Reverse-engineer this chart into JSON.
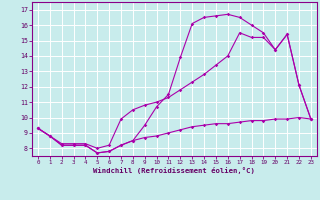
{
  "xlabel": "Windchill (Refroidissement éolien,°C)",
  "bg_color": "#c8ecec",
  "grid_color": "#ffffff",
  "line_color": "#aa00aa",
  "xlim": [
    -0.5,
    23.5
  ],
  "ylim": [
    7.5,
    17.5
  ],
  "xticks": [
    0,
    1,
    2,
    3,
    4,
    5,
    6,
    7,
    8,
    9,
    10,
    11,
    12,
    13,
    14,
    15,
    16,
    17,
    18,
    19,
    20,
    21,
    22,
    23
  ],
  "yticks": [
    8,
    9,
    10,
    11,
    12,
    13,
    14,
    15,
    16,
    17
  ],
  "line1_x": [
    0,
    1,
    2,
    3,
    4,
    5,
    6,
    7,
    8,
    9,
    10,
    11,
    12,
    13,
    14,
    15,
    16,
    17,
    18,
    19,
    20,
    21,
    22,
    23
  ],
  "line1_y": [
    9.3,
    8.8,
    8.2,
    8.2,
    8.2,
    7.7,
    7.8,
    8.2,
    8.5,
    9.5,
    10.7,
    11.5,
    13.9,
    16.1,
    16.5,
    16.6,
    16.7,
    16.5,
    16.0,
    15.5,
    14.4,
    15.4,
    12.1,
    9.9
  ],
  "line2_x": [
    0,
    1,
    2,
    3,
    4,
    5,
    6,
    7,
    8,
    9,
    10,
    11,
    12,
    13,
    14,
    15,
    16,
    17,
    18,
    19,
    20,
    21,
    22,
    23
  ],
  "line2_y": [
    9.3,
    8.8,
    8.3,
    8.3,
    8.3,
    8.0,
    8.2,
    9.9,
    10.5,
    10.8,
    11.0,
    11.3,
    11.8,
    12.3,
    12.8,
    13.4,
    14.0,
    15.5,
    15.2,
    15.2,
    14.4,
    15.4,
    12.1,
    9.9
  ],
  "line3_x": [
    0,
    1,
    2,
    3,
    4,
    5,
    6,
    7,
    8,
    9,
    10,
    11,
    12,
    13,
    14,
    15,
    16,
    17,
    18,
    19,
    20,
    21,
    22,
    23
  ],
  "line3_y": [
    9.3,
    8.8,
    8.2,
    8.2,
    8.2,
    7.7,
    7.8,
    8.2,
    8.5,
    8.7,
    8.8,
    9.0,
    9.2,
    9.4,
    9.5,
    9.6,
    9.6,
    9.7,
    9.8,
    9.8,
    9.9,
    9.9,
    10.0,
    9.9
  ]
}
